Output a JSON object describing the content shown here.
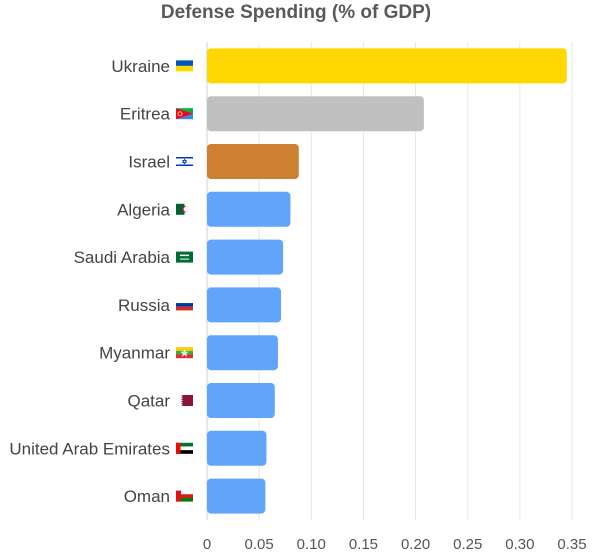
{
  "chart_data": {
    "type": "bar",
    "orientation": "horizontal",
    "title": "Defense Spending (% of GDP)",
    "xlabel": "",
    "ylabel": "",
    "categories": [
      "Ukraine",
      "Eritrea",
      "Israel",
      "Algeria",
      "Saudi Arabia",
      "Russia",
      "Myanmar",
      "Qatar",
      "United Arab Emirates",
      "Oman"
    ],
    "values": [
      0.345,
      0.208,
      0.088,
      0.08,
      0.073,
      0.071,
      0.068,
      0.065,
      0.057,
      0.056
    ],
    "bar_colors": [
      "#FFD700",
      "#C0C0C0",
      "#CD7F32",
      "#60A5FA",
      "#60A5FA",
      "#60A5FA",
      "#60A5FA",
      "#60A5FA",
      "#60A5FA",
      "#60A5FA"
    ],
    "flags": [
      "ukraine-flag-icon",
      "eritrea-flag-icon",
      "israel-flag-icon",
      "algeria-flag-icon",
      "saudi-arabia-flag-icon",
      "russia-flag-icon",
      "myanmar-flag-icon",
      "qatar-flag-icon",
      "uae-flag-icon",
      "oman-flag-icon"
    ],
    "xlim": [
      0,
      0.35
    ],
    "xticks": [
      "0",
      "0.05",
      "0.10",
      "0.15",
      "0.20",
      "0.25",
      "0.30",
      "0.35"
    ],
    "grid": true
  }
}
